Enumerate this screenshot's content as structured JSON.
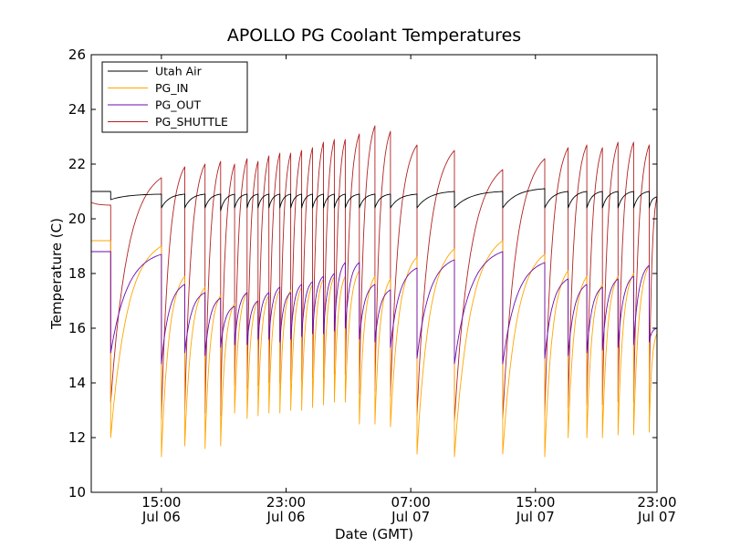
{
  "chart_data": {
    "type": "line",
    "title": "APOLLO PG Coolant Temperatures",
    "xlabel": "Date (GMT)",
    "ylabel": "Temperature (C)",
    "x_unit": "hours since Jul 06 10:30 GMT",
    "xlim": [
      0,
      36.3
    ],
    "ylim": [
      10,
      26
    ],
    "yticks": [
      10,
      12,
      14,
      16,
      18,
      20,
      22,
      24,
      26
    ],
    "xticks": [
      {
        "value": 4.5,
        "line1": "15:00",
        "line2": "Jul 06"
      },
      {
        "value": 12.5,
        "line1": "23:00",
        "line2": "Jul 06"
      },
      {
        "value": 20.5,
        "line1": "07:00",
        "line2": "Jul 07"
      },
      {
        "value": 28.5,
        "line1": "15:00",
        "line2": "Jul 07"
      },
      {
        "value": 36.5,
        "line1": "23:00",
        "line2": "Jul 07"
      }
    ],
    "legend_position": "top-left",
    "legend": [
      {
        "key": "air",
        "label": "Utah Air",
        "color": "#000000"
      },
      {
        "key": "in",
        "label": "PG_IN",
        "color": "#ffa500"
      },
      {
        "key": "out",
        "label": "PG_OUT",
        "color": "#6a0dad"
      },
      {
        "key": "shuttle",
        "label": "PG_SHUTTLE",
        "color": "#b22222"
      }
    ],
    "cycles": [
      {
        "start": 0.0,
        "end": 1.25,
        "air": [
          21.0,
          21.0
        ],
        "in": [
          19.2,
          19.2
        ],
        "out": [
          18.8,
          18.8
        ],
        "shuttle": [
          20.6,
          20.5
        ]
      },
      {
        "start": 1.25,
        "end": 4.5,
        "air": [
          20.7,
          20.9
        ],
        "in": [
          12.0,
          19.0
        ],
        "out": [
          15.1,
          18.7
        ],
        "shuttle": [
          13.3,
          21.5
        ]
      },
      {
        "start": 4.5,
        "end": 6.0,
        "air": [
          20.4,
          20.9
        ],
        "in": [
          11.3,
          17.9
        ],
        "out": [
          14.7,
          17.6
        ],
        "shuttle": [
          12.7,
          21.9
        ]
      },
      {
        "start": 6.0,
        "end": 7.3,
        "air": [
          20.4,
          20.9
        ],
        "in": [
          11.7,
          17.5
        ],
        "out": [
          15.1,
          17.3
        ],
        "shuttle": [
          13.0,
          22.0
        ]
      },
      {
        "start": 7.3,
        "end": 8.3,
        "air": [
          20.4,
          20.9
        ],
        "in": [
          11.6,
          17.2
        ],
        "out": [
          15.0,
          17.1
        ],
        "shuttle": [
          12.9,
          22.1
        ]
      },
      {
        "start": 8.3,
        "end": 9.2,
        "air": [
          20.3,
          20.9
        ],
        "in": [
          11.7,
          16.9
        ],
        "out": [
          15.3,
          16.8
        ],
        "shuttle": [
          12.8,
          22.0
        ]
      },
      {
        "start": 9.2,
        "end": 10.0,
        "air": [
          20.4,
          20.9
        ],
        "in": [
          12.9,
          17.3
        ],
        "out": [
          15.4,
          17.3
        ],
        "shuttle": [
          13.9,
          22.2
        ]
      },
      {
        "start": 10.0,
        "end": 10.7,
        "air": [
          20.4,
          20.9
        ],
        "in": [
          12.7,
          17.0
        ],
        "out": [
          15.4,
          17.0
        ],
        "shuttle": [
          13.8,
          22.1
        ]
      },
      {
        "start": 10.7,
        "end": 11.4,
        "air": [
          20.4,
          20.9
        ],
        "in": [
          12.8,
          17.2
        ],
        "out": [
          15.6,
          17.3
        ],
        "shuttle": [
          13.9,
          22.3
        ]
      },
      {
        "start": 11.4,
        "end": 12.1,
        "air": [
          20.4,
          20.9
        ],
        "in": [
          12.9,
          17.4
        ],
        "out": [
          15.6,
          17.5
        ],
        "shuttle": [
          14.0,
          22.4
        ]
      },
      {
        "start": 12.1,
        "end": 12.8,
        "air": [
          20.4,
          20.9
        ],
        "in": [
          12.9,
          17.4
        ],
        "out": [
          15.5,
          17.3
        ],
        "shuttle": [
          14.0,
          22.4
        ]
      },
      {
        "start": 12.8,
        "end": 13.5,
        "air": [
          20.4,
          20.9
        ],
        "in": [
          13.0,
          17.5
        ],
        "out": [
          15.6,
          17.6
        ],
        "shuttle": [
          14.1,
          22.5
        ]
      },
      {
        "start": 13.5,
        "end": 14.2,
        "air": [
          20.4,
          20.9
        ],
        "in": [
          13.0,
          17.6
        ],
        "out": [
          15.7,
          17.7
        ],
        "shuttle": [
          14.1,
          22.6
        ]
      },
      {
        "start": 14.2,
        "end": 14.9,
        "air": [
          20.4,
          20.9
        ],
        "in": [
          13.1,
          17.8
        ],
        "out": [
          15.8,
          17.9
        ],
        "shuttle": [
          14.2,
          22.8
        ]
      },
      {
        "start": 14.9,
        "end": 15.6,
        "air": [
          20.4,
          20.9
        ],
        "in": [
          13.2,
          17.9
        ],
        "out": [
          15.8,
          18.0
        ],
        "shuttle": [
          14.2,
          22.9
        ]
      },
      {
        "start": 15.6,
        "end": 16.3,
        "air": [
          20.4,
          20.9
        ],
        "in": [
          13.3,
          17.9
        ],
        "out": [
          15.9,
          18.4
        ],
        "shuttle": [
          14.3,
          22.9
        ]
      },
      {
        "start": 16.3,
        "end": 17.2,
        "air": [
          20.4,
          20.9
        ],
        "in": [
          13.3,
          18.1
        ],
        "out": [
          16.0,
          18.4
        ],
        "shuttle": [
          14.3,
          23.1
        ]
      },
      {
        "start": 17.2,
        "end": 18.2,
        "air": [
          20.4,
          20.9
        ],
        "in": [
          12.5,
          17.9
        ],
        "out": [
          15.6,
          17.6
        ],
        "shuttle": [
          13.6,
          23.4
        ]
      },
      {
        "start": 18.2,
        "end": 19.2,
        "air": [
          20.4,
          20.9
        ],
        "in": [
          12.5,
          17.8
        ],
        "out": [
          15.5,
          17.4
        ],
        "shuttle": [
          13.7,
          23.2
        ]
      },
      {
        "start": 19.2,
        "end": 20.9,
        "air": [
          20.4,
          20.9
        ],
        "in": [
          12.4,
          18.6
        ],
        "out": [
          15.3,
          18.2
        ],
        "shuttle": [
          13.5,
          22.7
        ]
      },
      {
        "start": 20.9,
        "end": 23.3,
        "air": [
          20.4,
          21.0
        ],
        "in": [
          11.4,
          18.9
        ],
        "out": [
          14.9,
          18.5
        ],
        "shuttle": [
          12.8,
          22.5
        ]
      },
      {
        "start": 23.3,
        "end": 26.4,
        "air": [
          20.4,
          21.0
        ],
        "in": [
          11.3,
          19.2
        ],
        "out": [
          14.7,
          18.8
        ],
        "shuttle": [
          12.6,
          21.8
        ]
      },
      {
        "start": 26.4,
        "end": 29.1,
        "air": [
          20.4,
          21.1
        ],
        "in": [
          11.4,
          18.7
        ],
        "out": [
          14.7,
          18.4
        ],
        "shuttle": [
          12.7,
          22.2
        ]
      },
      {
        "start": 29.1,
        "end": 30.6,
        "air": [
          20.4,
          21.0
        ],
        "in": [
          11.3,
          18.1
        ],
        "out": [
          14.9,
          17.8
        ],
        "shuttle": [
          12.8,
          22.6
        ]
      },
      {
        "start": 30.6,
        "end": 31.8,
        "air": [
          20.4,
          21.0
        ],
        "in": [
          12.0,
          17.9
        ],
        "out": [
          15.0,
          17.6
        ],
        "shuttle": [
          13.1,
          22.7
        ]
      },
      {
        "start": 31.8,
        "end": 32.8,
        "air": [
          20.4,
          21.0
        ],
        "in": [
          12.0,
          17.6
        ],
        "out": [
          15.1,
          17.5
        ],
        "shuttle": [
          13.2,
          22.6
        ]
      },
      {
        "start": 32.8,
        "end": 33.8,
        "air": [
          20.4,
          21.0
        ],
        "in": [
          12.0,
          17.9
        ],
        "out": [
          15.2,
          17.8
        ],
        "shuttle": [
          13.2,
          22.8
        ]
      },
      {
        "start": 33.8,
        "end": 34.8,
        "air": [
          20.4,
          21.0
        ],
        "in": [
          12.1,
          18.0
        ],
        "out": [
          15.3,
          17.9
        ],
        "shuttle": [
          13.3,
          22.8
        ]
      },
      {
        "start": 34.8,
        "end": 35.8,
        "air": [
          20.4,
          21.0
        ],
        "in": [
          12.1,
          18.3
        ],
        "out": [
          15.4,
          18.3
        ],
        "shuttle": [
          13.3,
          22.7
        ]
      },
      {
        "start": 35.8,
        "end": 36.3,
        "air": [
          20.4,
          20.8
        ],
        "in": [
          12.2,
          15.8
        ],
        "out": [
          15.5,
          16.0
        ],
        "shuttle": [
          13.3,
          20.8
        ]
      }
    ]
  }
}
